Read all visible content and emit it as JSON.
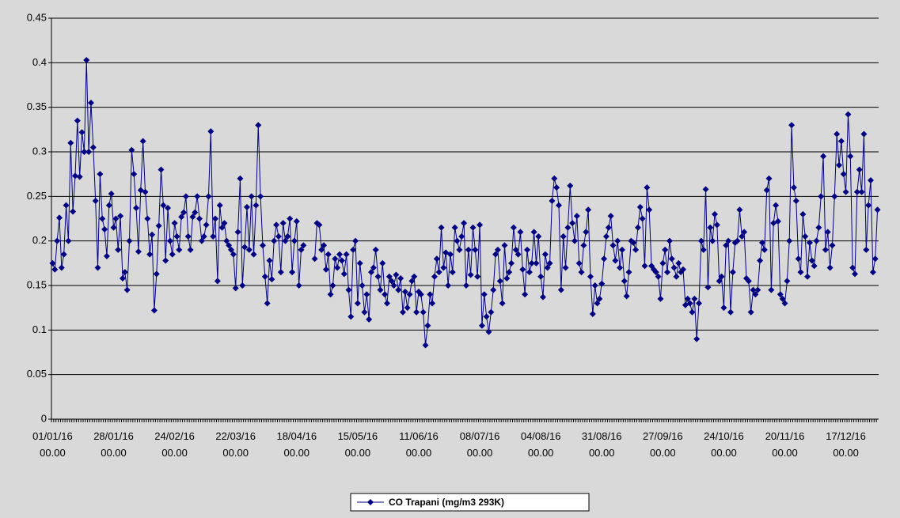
{
  "chart_data": {
    "type": "line",
    "categories": [
      "01/01/16 00.00",
      null,
      null,
      null,
      null,
      null,
      null,
      null,
      null,
      null,
      null,
      null,
      null,
      null,
      null,
      null,
      null,
      null,
      null,
      null,
      null,
      null,
      null,
      null,
      null,
      null,
      null,
      "28/01/16 00.00",
      null,
      null,
      null,
      null,
      null,
      null,
      null,
      null,
      null,
      null,
      null,
      null,
      null,
      null,
      null,
      null,
      null,
      null,
      null,
      null,
      null,
      null,
      null,
      null,
      null,
      null,
      "24/02/16 00.00",
      null,
      null,
      null,
      null,
      null,
      null,
      null,
      null,
      null,
      null,
      null,
      null,
      null,
      null,
      null,
      null,
      null,
      null,
      null,
      null,
      null,
      null,
      null,
      null,
      null,
      null,
      "22/03/16 00.00",
      null,
      null,
      null,
      null,
      null,
      null,
      null,
      null,
      null,
      null,
      null,
      null,
      null,
      null,
      null,
      null,
      null,
      null,
      null,
      null,
      null,
      null,
      null,
      null,
      null,
      null,
      "18/04/16 00.00",
      null,
      null,
      null,
      null,
      null,
      null,
      null,
      null,
      null,
      null,
      null,
      null,
      null,
      null,
      null,
      null,
      null,
      null,
      null,
      null,
      null,
      null,
      null,
      null,
      null,
      null,
      "15/05/16 00.00",
      null,
      null,
      null,
      null,
      null,
      null,
      null,
      null,
      null,
      null,
      null,
      null,
      null,
      null,
      null,
      null,
      null,
      null,
      null,
      null,
      null,
      null,
      null,
      null,
      null,
      null,
      "11/06/16 00.00",
      null,
      null,
      null,
      null,
      null,
      null,
      null,
      null,
      null,
      null,
      null,
      null,
      null,
      null,
      null,
      null,
      null,
      null,
      null,
      null,
      null,
      null,
      null,
      null,
      null,
      null,
      "08/07/16 00.00",
      null,
      null,
      null,
      null,
      null,
      null,
      null,
      null,
      null,
      null,
      null,
      null,
      null,
      null,
      null,
      null,
      null,
      null,
      null,
      null,
      null,
      null,
      null,
      null,
      null,
      null,
      "04/08/16 00.00",
      null,
      null,
      null,
      null,
      null,
      null,
      null,
      null,
      null,
      null,
      null,
      null,
      null,
      null,
      null,
      null,
      null,
      null,
      null,
      null,
      null,
      null,
      null,
      null,
      null,
      null,
      "31/08/16 00.00",
      null,
      null,
      null,
      null,
      null,
      null,
      null,
      null,
      null,
      null,
      null,
      null,
      null,
      null,
      null,
      null,
      null,
      null,
      null,
      null,
      null,
      null,
      null,
      null,
      null,
      null,
      "27/09/16 00.00",
      null,
      null,
      null,
      null,
      null,
      null,
      null,
      null,
      null,
      null,
      null,
      null,
      null,
      null,
      null,
      null,
      null,
      null,
      null,
      null,
      null,
      null,
      null,
      null,
      null,
      null,
      "24/10/16 00.00",
      null,
      null,
      null,
      null,
      null,
      null,
      null,
      null,
      null,
      null,
      null,
      null,
      null,
      null,
      null,
      null,
      null,
      null,
      null,
      null,
      null,
      null,
      null,
      null,
      null,
      null,
      "20/11/16 00.00",
      null,
      null,
      null,
      null,
      null,
      null,
      null,
      null,
      null,
      null,
      null,
      null,
      null,
      null,
      null,
      null,
      null,
      null,
      null,
      null,
      null,
      null,
      null,
      null,
      null,
      null,
      "17/12/16 00.00",
      null,
      null,
      null,
      null,
      null,
      null,
      null,
      null,
      null,
      null,
      null,
      null,
      null,
      null
    ],
    "series": [
      {
        "name": "CO Trapani (mg/m3 293K)",
        "color": "#000080",
        "values": [
          0.175,
          0.168,
          0.2,
          0.226,
          0.17,
          0.185,
          0.24,
          0.2,
          0.31,
          0.233,
          0.273,
          0.335,
          0.272,
          0.322,
          0.3,
          0.403,
          0.3,
          0.355,
          0.305,
          0.245,
          0.17,
          0.275,
          0.225,
          0.213,
          0.183,
          0.24,
          0.253,
          0.215,
          0.225,
          0.19,
          0.228,
          0.158,
          0.165,
          0.145,
          0.2,
          0.302,
          0.275,
          0.237,
          0.188,
          0.257,
          0.312,
          0.255,
          0.225,
          0.185,
          0.207,
          0.122,
          0.163,
          0.217,
          0.28,
          0.24,
          0.178,
          0.237,
          0.2,
          0.185,
          0.22,
          0.205,
          0.19,
          0.227,
          0.232,
          0.25,
          0.205,
          0.19,
          0.227,
          0.232,
          0.25,
          0.225,
          0.2,
          0.205,
          0.218,
          0.25,
          0.323,
          0.205,
          0.225,
          0.155,
          0.24,
          0.215,
          0.22,
          0.2,
          0.195,
          0.19,
          0.185,
          0.147,
          0.21,
          0.27,
          0.15,
          0.193,
          0.238,
          0.19,
          0.25,
          0.185,
          0.24,
          0.33,
          0.25,
          0.195,
          0.16,
          0.13,
          0.178,
          0.157,
          0.2,
          0.218,
          0.205,
          0.165,
          0.22,
          0.2,
          0.205,
          0.225,
          0.165,
          0.2,
          0.222,
          0.15,
          0.19,
          0.195,
          null,
          null,
          null,
          null,
          0.18,
          0.22,
          0.218,
          0.19,
          0.195,
          0.168,
          0.185,
          0.14,
          0.15,
          0.18,
          0.17,
          0.185,
          0.178,
          0.163,
          0.185,
          0.145,
          0.115,
          0.19,
          0.2,
          0.13,
          0.175,
          0.15,
          0.12,
          0.14,
          0.112,
          0.165,
          0.17,
          0.19,
          0.16,
          0.145,
          0.175,
          0.14,
          0.13,
          0.16,
          0.155,
          0.15,
          0.162,
          0.145,
          0.158,
          0.12,
          0.143,
          0.125,
          0.14,
          0.155,
          0.16,
          0.12,
          0.143,
          0.14,
          0.12,
          0.083,
          0.105,
          0.14,
          0.13,
          0.16,
          0.18,
          0.165,
          0.215,
          0.17,
          0.187,
          0.15,
          0.185,
          0.165,
          0.215,
          0.2,
          0.19,
          0.205,
          0.22,
          0.15,
          0.19,
          0.162,
          0.215,
          0.19,
          0.16,
          0.218,
          0.105,
          0.14,
          0.115,
          0.098,
          0.12,
          0.145,
          0.185,
          0.19,
          0.155,
          0.13,
          0.195,
          0.158,
          0.165,
          0.175,
          0.215,
          0.19,
          0.185,
          0.21,
          0.168,
          0.14,
          0.19,
          0.165,
          0.175,
          0.21,
          0.175,
          0.205,
          0.16,
          0.137,
          0.185,
          0.17,
          0.175,
          0.245,
          0.27,
          0.26,
          0.24,
          0.145,
          0.205,
          0.17,
          0.215,
          0.262,
          0.22,
          0.2,
          0.228,
          0.175,
          0.165,
          0.195,
          0.21,
          0.235,
          0.16,
          0.118,
          0.15,
          0.13,
          0.135,
          0.152,
          0.18,
          0.205,
          0.215,
          0.228,
          0.195,
          0.178,
          0.2,
          0.17,
          0.19,
          0.155,
          0.138,
          0.165,
          0.2,
          0.198,
          0.19,
          0.215,
          0.238,
          0.225,
          0.172,
          0.26,
          0.235,
          0.172,
          0.168,
          0.165,
          0.16,
          0.135,
          0.175,
          0.19,
          0.165,
          0.2,
          0.18,
          0.17,
          0.16,
          0.175,
          0.165,
          0.168,
          0.128,
          0.135,
          0.13,
          0.12,
          0.135,
          0.09,
          0.13,
          0.2,
          0.19,
          0.258,
          0.148,
          0.215,
          0.2,
          0.23,
          0.218,
          0.155,
          0.16,
          0.125,
          0.195,
          0.2,
          0.12,
          0.165,
          0.198,
          0.2,
          0.235,
          0.205,
          0.21,
          0.158,
          0.155,
          0.12,
          0.145,
          0.14,
          0.145,
          0.178,
          0.198,
          0.19,
          0.257,
          0.27,
          0.145,
          0.22,
          0.24,
          0.222,
          0.14,
          0.135,
          0.13,
          0.155,
          0.2,
          0.33,
          0.26,
          0.245,
          0.18,
          0.165,
          0.23,
          0.205,
          0.16,
          0.198,
          0.178,
          0.172,
          0.2,
          0.215,
          0.25,
          0.295,
          0.19,
          0.21,
          0.17,
          0.195,
          0.25,
          0.32,
          0.285,
          0.312,
          0.275,
          0.255,
          0.342,
          0.295,
          0.17,
          0.163,
          0.255,
          0.28,
          0.255,
          0.32,
          0.19,
          0.24,
          0.268,
          0.165,
          0.18,
          0.235
        ]
      }
    ],
    "ylim": [
      0,
      0.45
    ],
    "yticks": [
      0,
      0.05,
      0.1,
      0.15,
      0.2,
      0.25,
      0.3,
      0.35,
      0.4,
      0.45
    ],
    "grid": true,
    "legend": "bottom"
  }
}
